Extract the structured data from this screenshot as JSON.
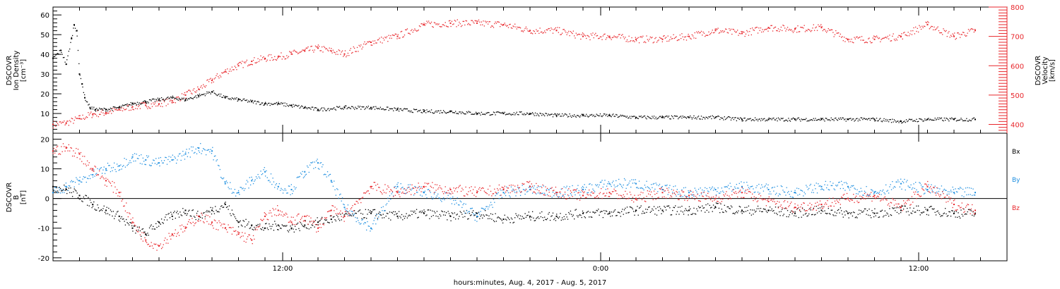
{
  "chart_data": [
    {
      "type": "scatter",
      "title": "",
      "xlabel": "",
      "ylabel": [
        "DSCOVR",
        "Ion Density",
        "[cm⁻³]"
      ],
      "ylabel_right": [
        "DSCOVR",
        "Velocity",
        "[km/s]"
      ],
      "x_unit": "hours since Aug. 4, 2017 03:20",
      "xlim": [
        0,
        36
      ],
      "ylim": [
        0,
        64
      ],
      "ylim_right": [
        370,
        800
      ],
      "yticks": [
        10,
        20,
        30,
        40,
        50,
        60
      ],
      "yticks_right": [
        400,
        500,
        600,
        700,
        800
      ],
      "colors": {
        "density": "#000000",
        "velocity": "#e8262b"
      },
      "series": [
        {
          "name": "Ion Density",
          "axis": "left",
          "color": "#000000",
          "x": [
            0.0,
            0.3,
            0.5,
            0.7,
            0.8,
            0.9,
            1.0,
            1.1,
            1.2,
            1.4,
            1.6,
            2.0,
            2.5,
            3.0,
            3.5,
            4.0,
            4.5,
            5.0,
            5.5,
            6.0,
            6.5,
            7.0,
            7.5,
            8.0,
            8.5,
            9.0,
            9.5,
            10.0,
            11.0,
            12.0,
            13.0,
            14.0,
            15.0,
            16.0,
            17.0,
            18.0,
            19.0,
            20.0,
            21.0,
            22.0,
            23.0,
            24.0,
            25.0,
            26.0,
            27.0,
            28.0,
            29.0,
            30.0,
            31.0,
            32.0,
            33.0,
            34.0,
            34.8
          ],
          "y": [
            38,
            42,
            35,
            48,
            55,
            52,
            30,
            25,
            18,
            13,
            12,
            12,
            13,
            15,
            16,
            17,
            18,
            17,
            19,
            21,
            18,
            17,
            16,
            15,
            15,
            14,
            13,
            12,
            13,
            13,
            12,
            11,
            11,
            10,
            10,
            10,
            9,
            9,
            9,
            8,
            8,
            8,
            8,
            7,
            7,
            7,
            7,
            7,
            7,
            6,
            7,
            7,
            7
          ]
        },
        {
          "name": "Velocity",
          "axis": "right",
          "color": "#e8262b",
          "x": [
            0.0,
            0.5,
            1.0,
            1.5,
            2.0,
            2.5,
            3.0,
            3.5,
            4.0,
            4.5,
            5.0,
            5.5,
            6.0,
            6.5,
            7.0,
            7.5,
            8.0,
            8.5,
            9.0,
            9.5,
            10.0,
            10.5,
            11.0,
            12.0,
            13.0,
            14.0,
            15.0,
            16.0,
            17.0,
            18.0,
            19.0,
            20.0,
            21.0,
            22.0,
            23.0,
            24.0,
            25.0,
            26.0,
            27.0,
            28.0,
            29.0,
            30.0,
            31.0,
            32.0,
            33.0,
            34.0,
            34.8
          ],
          "y": [
            400,
            405,
            420,
            435,
            440,
            450,
            460,
            465,
            470,
            480,
            500,
            520,
            550,
            580,
            600,
            615,
            625,
            630,
            640,
            650,
            660,
            650,
            640,
            680,
            700,
            740,
            745,
            745,
            740,
            720,
            720,
            700,
            700,
            690,
            690,
            700,
            720,
            710,
            730,
            725,
            730,
            690,
            690,
            700,
            740,
            700,
            720
          ]
        }
      ]
    },
    {
      "type": "scatter",
      "title": "",
      "xlabel": "hours:minutes, Aug.  4, 2017 - Aug.  5, 2017",
      "ylabel": [
        "DSCOVR",
        "B",
        "[nT]"
      ],
      "x_unit": "hours since Aug. 4, 2017 03:20",
      "xlim": [
        0,
        36
      ],
      "ylim": [
        -21,
        22
      ],
      "yticks": [
        -20,
        -10,
        0,
        10,
        20
      ],
      "xticks": [
        {
          "x": 8.667,
          "label": "12:00"
        },
        {
          "x": 20.667,
          "label": "0:00"
        },
        {
          "x": 32.667,
          "label": "12:00"
        }
      ],
      "zero_line": true,
      "legend": {
        "placement": "right",
        "entries": [
          "Bx",
          "By",
          "Bz"
        ]
      },
      "colors": {
        "Bx": "#000000",
        "By": "#1f8fe0",
        "Bz": "#e8262b"
      },
      "series": [
        {
          "name": "Bx",
          "color": "#000000",
          "x": [
            0.0,
            0.5,
            1.0,
            1.5,
            2.0,
            2.5,
            3.0,
            3.5,
            4.0,
            4.5,
            5.0,
            5.5,
            6.0,
            6.5,
            7.0,
            7.5,
            8.0,
            8.5,
            9.0,
            9.5,
            10.0,
            10.5,
            11.0,
            12.0,
            13.0,
            14.0,
            15.0,
            16.0,
            17.0,
            18.0,
            19.0,
            20.0,
            21.0,
            22.0,
            23.0,
            24.0,
            25.0,
            26.0,
            27.0,
            28.0,
            29.0,
            30.0,
            31.0,
            32.0,
            33.0,
            34.0,
            34.8
          ],
          "y": [
            4,
            3,
            1,
            -2,
            -4,
            -6,
            -10,
            -12,
            -8,
            -6,
            -4,
            -6,
            -4,
            -2,
            -8,
            -9,
            -10,
            -9,
            -10,
            -9,
            -8,
            -7,
            -6,
            -5,
            -6,
            -5,
            -6,
            -5,
            -7,
            -6,
            -6,
            -5,
            -5,
            -4,
            -4,
            -4,
            -3,
            -4,
            -4,
            -5,
            -4,
            -5,
            -5,
            -4,
            -4,
            -5,
            -5
          ]
        },
        {
          "name": "By",
          "color": "#1f8fe0",
          "x": [
            0.0,
            0.5,
            1.0,
            1.5,
            2.0,
            2.5,
            3.0,
            3.5,
            4.0,
            4.5,
            5.0,
            5.5,
            6.0,
            6.5,
            7.0,
            7.5,
            8.0,
            8.5,
            9.0,
            9.5,
            10.0,
            10.5,
            11.0,
            12.0,
            13.0,
            14.0,
            15.0,
            16.0,
            17.0,
            18.0,
            19.0,
            20.0,
            21.0,
            22.0,
            23.0,
            24.0,
            25.0,
            26.0,
            27.0,
            28.0,
            29.0,
            30.0,
            31.0,
            32.0,
            33.0,
            34.0,
            34.8
          ],
          "y": [
            2,
            4,
            6,
            8,
            10,
            11,
            14,
            13,
            12,
            13,
            15,
            17,
            16,
            5,
            2,
            6,
            9,
            4,
            3,
            9,
            12,
            6,
            -3,
            -10,
            4,
            2,
            0,
            -6,
            2,
            3,
            2,
            3,
            5,
            5,
            3,
            2,
            3,
            4,
            3,
            2,
            4,
            4,
            2,
            5,
            3,
            2,
            2
          ]
        },
        {
          "name": "Bz",
          "color": "#e8262b",
          "x": [
            0.0,
            0.5,
            1.0,
            1.5,
            2.0,
            2.5,
            3.0,
            3.5,
            4.0,
            4.5,
            5.0,
            5.5,
            6.0,
            6.5,
            7.0,
            7.5,
            8.0,
            8.5,
            9.0,
            9.5,
            10.0,
            10.5,
            11.0,
            12.0,
            13.0,
            14.0,
            15.0,
            16.0,
            17.0,
            18.0,
            19.0,
            20.0,
            21.0,
            22.0,
            23.0,
            24.0,
            25.0,
            26.0,
            27.0,
            28.0,
            29.0,
            30.0,
            31.0,
            32.0,
            33.0,
            34.0,
            34.8
          ],
          "y": [
            16,
            17,
            15,
            10,
            6,
            2,
            -8,
            -14,
            -16,
            -12,
            -10,
            -6,
            -8,
            -10,
            -12,
            -14,
            -6,
            -4,
            -8,
            -6,
            -10,
            -4,
            -6,
            4,
            2,
            4,
            3,
            2,
            3,
            4,
            2,
            1,
            2,
            0,
            2,
            1,
            0,
            2,
            -1,
            -3,
            -2,
            0,
            1,
            -3,
            4,
            -2,
            -4
          ]
        }
      ]
    }
  ]
}
